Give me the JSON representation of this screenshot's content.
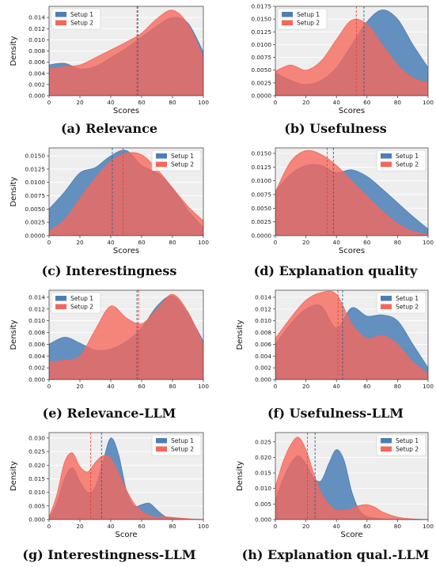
{
  "colors": {
    "setup1": "#4a7fb5",
    "setup2": "#f7665a",
    "background": "#eeeeee",
    "grid": "#ffffff"
  },
  "legend": [
    "Setup 1",
    "Setup 2"
  ],
  "chart_data": [
    {
      "type": "area",
      "caption": "(a) Relevance",
      "xlabel": "Scores",
      "ylabel": "Density",
      "xlim": [
        0,
        100
      ],
      "ylim": [
        0,
        0.016
      ],
      "xticks": [
        "0",
        "20",
        "40",
        "60",
        "80",
        "100"
      ],
      "yticks": [
        "0.000",
        "0.002",
        "0.004",
        "0.006",
        "0.008",
        "0.010",
        "0.012",
        "0.014"
      ],
      "legend_position": "top-left",
      "grid": true,
      "x": [
        0,
        10,
        20,
        30,
        40,
        50,
        60,
        70,
        80,
        90,
        100
      ],
      "series": [
        {
          "name": "Setup 1",
          "values": [
            0.0055,
            0.0058,
            0.0048,
            0.0052,
            0.0068,
            0.0085,
            0.0105,
            0.0125,
            0.014,
            0.013,
            0.0078
          ],
          "mean": 57.5
        },
        {
          "name": "Setup 2",
          "values": [
            0.0048,
            0.0052,
            0.0055,
            0.0068,
            0.0082,
            0.0096,
            0.0112,
            0.0138,
            0.0153,
            0.0128,
            0.0068
          ],
          "mean": 57
        }
      ]
    },
    {
      "type": "area",
      "caption": "(b) Usefulness",
      "xlabel": "Scores",
      "ylabel": "",
      "xlim": [
        0,
        100
      ],
      "ylim": [
        0,
        0.0175
      ],
      "xticks": [
        "0",
        "20",
        "40",
        "60",
        "80",
        "100"
      ],
      "yticks": [
        "0.0000",
        "0.0025",
        "0.0050",
        "0.0075",
        "0.0100",
        "0.0125",
        "0.0150",
        "0.0175"
      ],
      "legend_position": "top-left",
      "grid": true,
      "x": [
        0,
        10,
        20,
        30,
        40,
        50,
        60,
        70,
        80,
        90,
        100
      ],
      "series": [
        {
          "name": "Setup 1",
          "values": [
            0.0045,
            0.003,
            0.0022,
            0.003,
            0.0055,
            0.01,
            0.0145,
            0.0168,
            0.015,
            0.01,
            0.0055
          ],
          "mean": 58
        },
        {
          "name": "Setup 2",
          "values": [
            0.0048,
            0.006,
            0.005,
            0.0068,
            0.011,
            0.0148,
            0.014,
            0.01,
            0.006,
            0.0035,
            0.0025
          ],
          "mean": 53
        }
      ]
    },
    {
      "type": "area",
      "caption": "(c) Interestingness",
      "xlabel": "Scores",
      "ylabel": "Density",
      "xlim": [
        0,
        100
      ],
      "ylim": [
        0,
        0.0165
      ],
      "xticks": [
        "0",
        "20",
        "40",
        "60",
        "80",
        "100"
      ],
      "yticks": [
        "0.0000",
        "0.0025",
        "0.0050",
        "0.0075",
        "0.0100",
        "0.0125",
        "0.0150"
      ],
      "legend_position": "top-right",
      "grid": true,
      "x": [
        0,
        10,
        20,
        30,
        40,
        50,
        60,
        70,
        80,
        90,
        100
      ],
      "series": [
        {
          "name": "Setup 1",
          "values": [
            0.005,
            0.0082,
            0.0118,
            0.0128,
            0.015,
            0.016,
            0.0132,
            0.0118,
            0.009,
            0.0048,
            0.0015
          ],
          "mean": 41
        },
        {
          "name": "Setup 2",
          "values": [
            0.0008,
            0.003,
            0.007,
            0.0108,
            0.014,
            0.0155,
            0.0152,
            0.0125,
            0.009,
            0.0055,
            0.0028
          ],
          "mean": 48
        }
      ]
    },
    {
      "type": "area",
      "caption": "(d) Explanation quality",
      "xlabel": "Scores",
      "ylabel": "",
      "xlim": [
        0,
        100
      ],
      "ylim": [
        0,
        0.016
      ],
      "xticks": [
        "0",
        "20",
        "40",
        "60",
        "80",
        "100"
      ],
      "yticks": [
        "0.0000",
        "0.0025",
        "0.0050",
        "0.0075",
        "0.0100",
        "0.0125",
        "0.0150"
      ],
      "legend_position": "top-right",
      "grid": true,
      "x": [
        0,
        10,
        20,
        30,
        40,
        50,
        60,
        70,
        80,
        90,
        100
      ],
      "series": [
        {
          "name": "Setup 1",
          "values": [
            0.0082,
            0.0112,
            0.0128,
            0.0128,
            0.0115,
            0.012,
            0.0108,
            0.0085,
            0.006,
            0.0035,
            0.0012
          ],
          "mean": 38
        },
        {
          "name": "Setup 2",
          "values": [
            0.008,
            0.0135,
            0.0155,
            0.0148,
            0.0128,
            0.01,
            0.0072,
            0.0045,
            0.0022,
            0.0008,
            0.0002
          ],
          "mean": 34
        }
      ]
    },
    {
      "type": "area",
      "caption": "(e) Relevance-LLM",
      "xlabel": "",
      "ylabel": "Density",
      "xlim": [
        0,
        100
      ],
      "ylim": [
        0,
        0.0152
      ],
      "xticks": [
        "0",
        "20",
        "40",
        "60",
        "80",
        "100"
      ],
      "yticks": [
        "0.000",
        "0.002",
        "0.004",
        "0.006",
        "0.008",
        "0.010",
        "0.012",
        "0.014"
      ],
      "legend_position": "top-left",
      "grid": true,
      "x": [
        0,
        10,
        20,
        30,
        40,
        50,
        60,
        70,
        80,
        90,
        100
      ],
      "series": [
        {
          "name": "Setup 1",
          "values": [
            0.006,
            0.0072,
            0.0062,
            0.005,
            0.0052,
            0.0065,
            0.0088,
            0.0125,
            0.0142,
            0.0112,
            0.0065
          ],
          "mean": 57
        },
        {
          "name": "Setup 2",
          "values": [
            0.003,
            0.0033,
            0.004,
            0.0085,
            0.0125,
            0.0105,
            0.0095,
            0.012,
            0.0145,
            0.0115,
            0.006
          ],
          "mean": 58
        }
      ]
    },
    {
      "type": "area",
      "caption": "(f) Usefulness-LLM",
      "xlabel": "",
      "ylabel": "Density",
      "xlim": [
        0,
        100
      ],
      "ylim": [
        0,
        0.0152
      ],
      "xticks": [
        "0",
        "20",
        "40",
        "60",
        "80",
        "100"
      ],
      "yticks": [
        "0.000",
        "0.002",
        "0.004",
        "0.006",
        "0.008",
        "0.010",
        "0.012",
        "0.014"
      ],
      "legend_position": "top-right",
      "grid": true,
      "x": [
        0,
        10,
        20,
        30,
        40,
        50,
        60,
        70,
        80,
        90,
        100
      ],
      "series": [
        {
          "name": "Setup 1",
          "values": [
            0.006,
            0.0095,
            0.012,
            0.0125,
            0.0088,
            0.0122,
            0.0108,
            0.011,
            0.01,
            0.006,
            0.002
          ],
          "mean": 44
        },
        {
          "name": "Setup 2",
          "values": [
            0.007,
            0.0105,
            0.0135,
            0.0148,
            0.0145,
            0.0095,
            0.007,
            0.0075,
            0.006,
            0.003,
            0.001
          ],
          "mean": 41
        }
      ]
    },
    {
      "type": "area",
      "caption": "(g) Interestingness-LLM",
      "xlabel": "Score",
      "ylabel": "Density",
      "xlim": [
        0,
        100
      ],
      "ylim": [
        0,
        0.032
      ],
      "xticks": [
        "0",
        "20",
        "40",
        "60",
        "80",
        "100"
      ],
      "yticks": [
        "0.000",
        "0.005",
        "0.010",
        "0.015",
        "0.020",
        "0.025",
        "0.030"
      ],
      "legend_position": "top-right",
      "grid": true,
      "x": [
        0,
        5,
        10,
        15,
        20,
        25,
        30,
        35,
        40,
        45,
        50,
        55,
        60,
        65,
        70,
        75,
        80,
        90,
        100
      ],
      "series": [
        {
          "name": "Setup 1",
          "values": [
            0.0005,
            0.006,
            0.015,
            0.019,
            0.014,
            0.01,
            0.012,
            0.0215,
            0.03,
            0.024,
            0.011,
            0.005,
            0.0055,
            0.006,
            0.0035,
            0.0012,
            0.0005,
            0.0002,
            0.0
          ],
          "mean": 34
        },
        {
          "name": "Setup 2",
          "values": [
            0.001,
            0.009,
            0.021,
            0.0245,
            0.0195,
            0.0175,
            0.021,
            0.0235,
            0.0225,
            0.017,
            0.011,
            0.006,
            0.003,
            0.0015,
            0.0008,
            0.001,
            0.0008,
            0.0003,
            0.0
          ],
          "mean": 27
        }
      ]
    },
    {
      "type": "area",
      "caption": "(h) Explanation qual.-LLM",
      "xlabel": "Score",
      "ylabel": "Density",
      "xlim": [
        0,
        100
      ],
      "ylim": [
        0,
        0.028
      ],
      "xticks": [
        "0",
        "20",
        "40",
        "60",
        "80",
        "100"
      ],
      "yticks": [
        "0.000",
        "0.005",
        "0.010",
        "0.015",
        "0.020",
        "0.025"
      ],
      "legend_position": "top-right",
      "grid": true,
      "x": [
        0,
        5,
        10,
        15,
        20,
        25,
        30,
        35,
        40,
        45,
        50,
        55,
        60,
        65,
        70,
        80,
        90,
        100
      ],
      "series": [
        {
          "name": "Setup 1",
          "values": [
            0.006,
            0.013,
            0.018,
            0.0205,
            0.018,
            0.0135,
            0.0125,
            0.018,
            0.0225,
            0.019,
            0.009,
            0.003,
            0.001,
            0.0005,
            0.0002,
            0.0001,
            0.0,
            0.0
          ],
          "mean": 26
        },
        {
          "name": "Setup 2",
          "values": [
            0.0105,
            0.0185,
            0.024,
            0.0265,
            0.0225,
            0.015,
            0.0085,
            0.005,
            0.003,
            0.003,
            0.0035,
            0.0045,
            0.0048,
            0.004,
            0.0025,
            0.0008,
            0.0002,
            0.0
          ],
          "mean": 21
        }
      ]
    }
  ]
}
